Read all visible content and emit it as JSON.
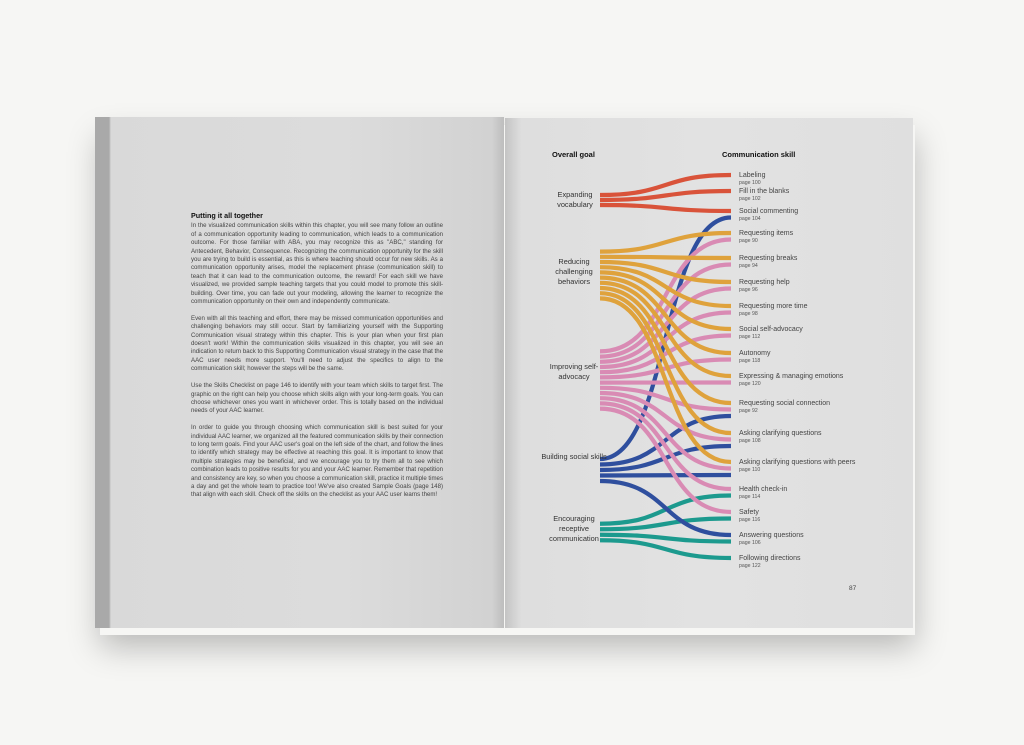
{
  "left_page": {
    "heading": "Putting it all together",
    "paragraphs": [
      "In the visualized communication skills within this chapter, you will see many follow an outline of a communication opportunity leading to communication, which leads to a communication outcome. For those familiar with ABA, you may recognize this as \"ABC,\" standing for Antecedent, Behavior, Consequence. Recognizing the communication opportunity for the skill you are trying to build is essential, as this is where teaching should occur for new skills. As a communication opportunity arises, model the replacement phrase (communication skill) to teach that it can lead to the communication outcome, the reward! For each skill we have visualized, we provided sample teaching targets that you could model to promote this skill-building. Over time, you can fade out your modeling, allowing the learner to recognize the communication opportunity on their own and independently communicate.",
      "Even with all this teaching and effort, there may be missed communication opportunities and challenging behaviors may still occur. Start by familiarizing yourself with the Supporting Communication visual strategy within this chapter. This is your plan when your first plan doesn't work! Within the communication skills visualized in this chapter, you will see an indication to return back to this Supporting Communication visual strategy in the case that the AAC user needs more support. You'll need to adjust the specifics to align to the communication skill; however the steps will be the same.",
      "Use the Skills Checklist on page 146 to identify with your team which skills to target first. The graphic on the right can help you choose which skills align with your long-term goals. You can choose whichever ones you want in whichever order. This is totally based on the individual needs of your AAC learner.",
      "In order to guide you through choosing which communication skill is best suited for your individual AAC learner, we organized all the featured communication skills by their connection to long term goals. Find your AAC user's goal on the left side of the chart, and follow the lines to identify which strategy may be effective at reaching this goal. It is important to know that multiple strategies may be beneficial, and we encourage you to try them all to see which combination leads to positive results for you and your AAC learner. Remember that repetition and consistency are key, so when you choose a communication skill, practice it multiple times a day and get the whole team to practice too! We've also created Sample Goals (page 148) that align with each skill. Check off the skills on the checklist as your AAC user learns them!"
    ]
  },
  "right_page": {
    "left_header": "Overall goal",
    "right_header": "Communication skill",
    "page_number": "87",
    "goals": [
      {
        "label": "Expanding vocabulary",
        "color": "#d9533a"
      },
      {
        "label": "Reducing challenging behaviors",
        "color": "#dfa23c"
      },
      {
        "label": "Improving self-advocacy",
        "color": "#d98bb4"
      },
      {
        "label": "Building social skills",
        "color": "#2f4f9e"
      },
      {
        "label": "Encouraging receptive communication",
        "color": "#1c9a8e"
      }
    ],
    "skills": [
      {
        "label": "Labeling",
        "page": "page 100",
        "goals": [
          0
        ]
      },
      {
        "label": "Fill in the blanks",
        "page": "page 102",
        "goals": [
          0
        ]
      },
      {
        "label": "Social commenting",
        "page": "page 104",
        "goals": [
          0,
          3
        ]
      },
      {
        "label": "Requesting items",
        "page": "page 90",
        "goals": [
          1,
          2
        ]
      },
      {
        "label": "Requesting breaks",
        "page": "page 94",
        "goals": [
          1,
          2
        ]
      },
      {
        "label": "Requesting help",
        "page": "page 96",
        "goals": [
          1,
          2
        ]
      },
      {
        "label": "Requesting more time",
        "page": "page 98",
        "goals": [
          1,
          2
        ]
      },
      {
        "label": "Social self-advocacy",
        "page": "page 112",
        "goals": [
          1,
          2
        ]
      },
      {
        "label": "Autonomy",
        "page": "page 118",
        "goals": [
          1,
          2
        ]
      },
      {
        "label": "Expressing & managing emotions",
        "page": "page 120",
        "goals": [
          1,
          2
        ]
      },
      {
        "label": "Requesting social connection",
        "page": "page 92",
        "goals": [
          1,
          2,
          3
        ]
      },
      {
        "label": "Asking clarifying questions",
        "page": "page 108",
        "goals": [
          1,
          2,
          3
        ]
      },
      {
        "label": "Asking clarifying questions with peers",
        "page": "page 110",
        "goals": [
          1,
          2,
          3
        ]
      },
      {
        "label": "Health check-in",
        "page": "page 114",
        "goals": [
          2,
          4
        ]
      },
      {
        "label": "Safety",
        "page": "page 116",
        "goals": [
          2,
          4
        ]
      },
      {
        "label": "Answering questions",
        "page": "page 106",
        "goals": [
          3,
          4
        ]
      },
      {
        "label": "Following directions",
        "page": "page 122",
        "goals": [
          4
        ]
      }
    ]
  }
}
